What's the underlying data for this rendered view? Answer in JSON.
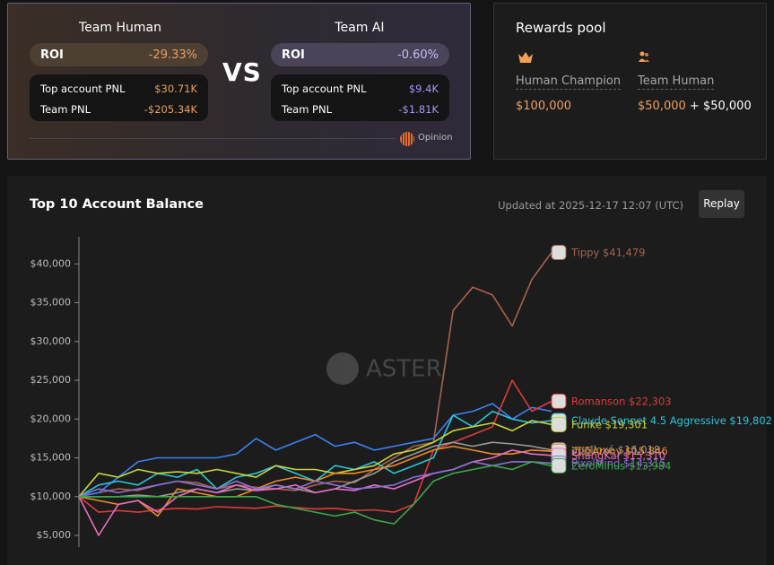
{
  "team_human": {
    "title": "Team Human",
    "roi_label": "ROI",
    "roi": "-29.33%",
    "top_account_pnl_label": "Top account PNL",
    "top_account_pnl": "$30.71K",
    "team_pnl_label": "Team PNL",
    "team_pnl": "-$205.34K"
  },
  "vs": "VS",
  "team_ai": {
    "title": "Team AI",
    "roi_label": "ROI",
    "roi": "-0.60%",
    "top_account_pnl_label": "Top account PNL",
    "top_account_pnl": "$9.4K",
    "team_pnl_label": "Team PNL",
    "team_pnl": "-$1.81K"
  },
  "powered_by": "Opinion",
  "rewards": {
    "title": "Rewards pool",
    "human_champion": "Human Champion",
    "human_champion_amount": "$100,000",
    "team_human": "Team Human",
    "team_human_amount_1": "$50,000",
    "plus": "+",
    "team_human_amount_2": "$50,000"
  },
  "chart_data": {
    "type": "line",
    "title": "Top 10 Account Balance",
    "updated": "Updated at 2025-12-17 12:07 (UTC)",
    "replay": "Replay",
    "watermark": "ASTER",
    "ylim": [
      3500,
      43500
    ],
    "yticks": [
      {
        "value": 5000,
        "label": "$5,000"
      },
      {
        "value": 10000,
        "label": "$10,000"
      },
      {
        "value": 15000,
        "label": "$15,000"
      },
      {
        "value": 20000,
        "label": "$20,000"
      },
      {
        "value": 25000,
        "label": "$25,000"
      },
      {
        "value": 30000,
        "label": "$30,000"
      },
      {
        "value": 35000,
        "label": "$35,000"
      },
      {
        "value": 40000,
        "label": "$40,000"
      }
    ],
    "series": [
      {
        "name": "Tippy",
        "color": "#a8634c",
        "values": [
          10000,
          10500,
          11000,
          10800,
          11500,
          12000,
          11800,
          11000,
          11500,
          11200,
          11000,
          10800,
          11500,
          12000,
          11800,
          13500,
          15000,
          16500,
          17000,
          34000,
          37000,
          36000,
          32000,
          38000,
          41479
        ],
        "value_labels": [
          null,
          null,
          null,
          null,
          null,
          null,
          null,
          null,
          null,
          null,
          null,
          null,
          null,
          null,
          null,
          null,
          null,
          null,
          null,
          null,
          null,
          null,
          null,
          null,
          "$41,479"
        ]
      },
      {
        "color": "#3b82f6",
        "values": [
          10000,
          10500,
          12500,
          14500,
          15000,
          15000,
          15000,
          15000,
          15500,
          17500,
          16000,
          17000,
          18000,
          16500,
          17000,
          16000,
          16500,
          17000,
          17500,
          20500,
          21000,
          22000,
          20000,
          21500,
          21000
        ]
      },
      {
        "name": "Romanson",
        "color": "#e03a3a",
        "values": [
          10000,
          8000,
          8200,
          8000,
          8300,
          8500,
          8400,
          8700,
          8600,
          8500,
          8800,
          8600,
          8400,
          8500,
          8200,
          8300,
          8000,
          9000,
          16000,
          17000,
          18000,
          19000,
          25000,
          21000,
          22303
        ],
        "value_labels": [
          null,
          null,
          null,
          null,
          null,
          null,
          null,
          null,
          null,
          null,
          null,
          null,
          null,
          null,
          null,
          null,
          null,
          null,
          null,
          null,
          null,
          null,
          null,
          null,
          "$22,303"
        ]
      },
      {
        "name": "Claude Sonnet 4.5 Aggressive",
        "color": "#2cc4d8",
        "values": [
          10000,
          11500,
          12000,
          11500,
          13000,
          12500,
          13500,
          11000,
          12500,
          13000,
          14000,
          13000,
          12000,
          14000,
          13500,
          14500,
          13000,
          14000,
          15000,
          20500,
          19000,
          21000,
          20000,
          19500,
          19802
        ],
        "value_labels": [
          null,
          null,
          null,
          null,
          null,
          null,
          null,
          null,
          null,
          null,
          null,
          null,
          null,
          null,
          null,
          null,
          null,
          null,
          null,
          null,
          null,
          null,
          null,
          null,
          "$19,802"
        ]
      },
      {
        "name": "Funke",
        "color": "#c8d43a",
        "values": [
          10000,
          13000,
          12500,
          13500,
          13000,
          13200,
          13000,
          13500,
          13000,
          12500,
          14000,
          13500,
          13500,
          13000,
          13500,
          14000,
          15500,
          16000,
          17000,
          18500,
          19000,
          19500,
          18500,
          19800,
          19301
        ],
        "value_labels": [
          null,
          null,
          null,
          null,
          null,
          null,
          null,
          null,
          null,
          null,
          null,
          null,
          null,
          null,
          null,
          null,
          null,
          null,
          null,
          null,
          null,
          null,
          null,
          null,
          "$19,301"
        ]
      },
      {
        "name": "apolloxé",
        "color": "#9a9a9a",
        "values": [
          10000,
          10000,
          10000,
          10200,
          10000,
          10500,
          11000,
          10500,
          11000,
          10800,
          11500,
          11000,
          10500,
          11000,
          12000,
          13000,
          14500,
          15500,
          16500,
          17000,
          16500,
          17000,
          16800,
          16500,
          16018
        ],
        "value_labels": [
          null,
          null,
          null,
          null,
          null,
          null,
          null,
          null,
          null,
          null,
          null,
          null,
          null,
          null,
          null,
          null,
          null,
          null,
          null,
          null,
          null,
          null,
          null,
          null,
          "$16,018"
        ]
      },
      {
        "name": "迈迈Arony",
        "color": "#f08a24",
        "values": [
          10000,
          9500,
          9000,
          9500,
          7500,
          11000,
          10500,
          10000,
          10000,
          11000,
          12000,
          12500,
          12000,
          13000,
          13000,
          13500,
          14000,
          15000,
          16000,
          16500,
          16000,
          15500,
          15500,
          16000,
          15846
        ],
        "value_labels": [
          null,
          null,
          null,
          null,
          null,
          null,
          null,
          null,
          null,
          null,
          null,
          null,
          null,
          null,
          null,
          null,
          null,
          null,
          null,
          null,
          null,
          null,
          null,
          null,
          "$15,846"
        ]
      },
      {
        "name": "ShangKai",
        "color": "#e86fc0",
        "values": [
          10000,
          5000,
          9000,
          9500,
          8000,
          10000,
          11000,
          10500,
          11500,
          10800,
          11000,
          11500,
          10500,
          11000,
          10800,
          11500,
          11000,
          12000,
          13000,
          13500,
          14500,
          15000,
          16000,
          15500,
          15310
        ],
        "value_labels": [
          null,
          null,
          null,
          null,
          null,
          null,
          null,
          null,
          null,
          null,
          null,
          null,
          null,
          null,
          null,
          null,
          null,
          null,
          null,
          null,
          null,
          null,
          null,
          null,
          "$15,310"
        ]
      },
      {
        "name": "PixelMind",
        "color": "#8a6fd8",
        "values": [
          10000,
          11000,
          10500,
          11000,
          11500,
          12000,
          11500,
          11000,
          12000,
          11000,
          11500,
          11000,
          12000,
          11500,
          11000,
          11200,
          11500,
          12500,
          13000,
          13500,
          14500,
          14000,
          14500,
          14500,
          14315
        ],
        "value_labels": [
          null,
          null,
          null,
          null,
          null,
          null,
          null,
          null,
          null,
          null,
          null,
          null,
          null,
          null,
          null,
          null,
          null,
          null,
          null,
          null,
          null,
          null,
          null,
          null,
          "$14,315"
        ]
      },
      {
        "name": "ZeroMinus",
        "color": "#3aa84a",
        "values": [
          10000,
          10000,
          10000,
          10000,
          10000,
          10000,
          10000,
          10000,
          10000,
          10000,
          9000,
          8500,
          8000,
          7500,
          8000,
          7000,
          6500,
          9000,
          12000,
          13000,
          13500,
          14000,
          13500,
          14500,
          13984
        ],
        "value_labels": [
          null,
          null,
          null,
          null,
          null,
          null,
          null,
          null,
          null,
          null,
          null,
          null,
          null,
          null,
          null,
          null,
          null,
          null,
          null,
          null,
          null,
          null,
          null,
          null,
          "$13,984"
        ]
      }
    ]
  }
}
